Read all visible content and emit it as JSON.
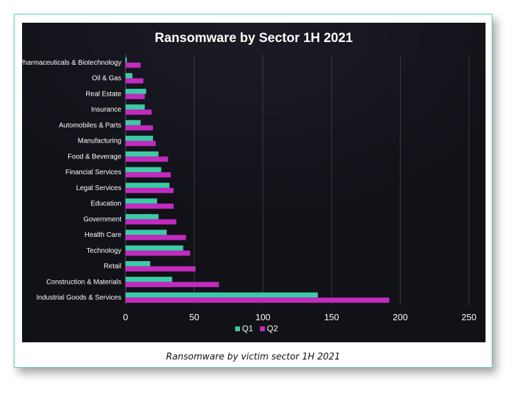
{
  "caption": "Ransomware by victim sector 1H 2021",
  "colors": {
    "background": "#111118",
    "q1": "#3ec9a7",
    "q2": "#c12bbf",
    "text": "#ffffff",
    "grid": "#3a3a44"
  },
  "chart_data": {
    "type": "bar",
    "orientation": "horizontal",
    "title": "Ransomware by Sector 1H 2021",
    "categories": [
      "Pharmaceuticals & Biotechnology",
      "Oil & Gas",
      "Real Estate",
      "Insurance",
      "Automobiles & Parts",
      "Manufacturing",
      "Food & Beverage",
      "Financial Services",
      "Legal Services",
      "Education",
      "Government",
      "Health Care",
      "Technology",
      "Retail",
      "Construction & Materials",
      "Industrial Goods & Services"
    ],
    "series": [
      {
        "name": "Q1",
        "color": "#3ec9a7",
        "values": [
          1,
          5,
          15,
          14,
          11,
          20,
          24,
          26,
          32,
          23,
          24,
          30,
          42,
          18,
          34,
          140
        ]
      },
      {
        "name": "Q2",
        "color": "#c12bbf",
        "values": [
          11,
          13,
          14,
          19,
          20,
          22,
          31,
          33,
          35,
          35,
          37,
          44,
          47,
          51,
          68,
          192
        ]
      }
    ],
    "xticks": [
      "0",
      "50",
      "100",
      "150",
      "200",
      "250"
    ],
    "xlim": [
      0,
      250
    ],
    "grid": "vertical",
    "legend": "bottom-center"
  }
}
